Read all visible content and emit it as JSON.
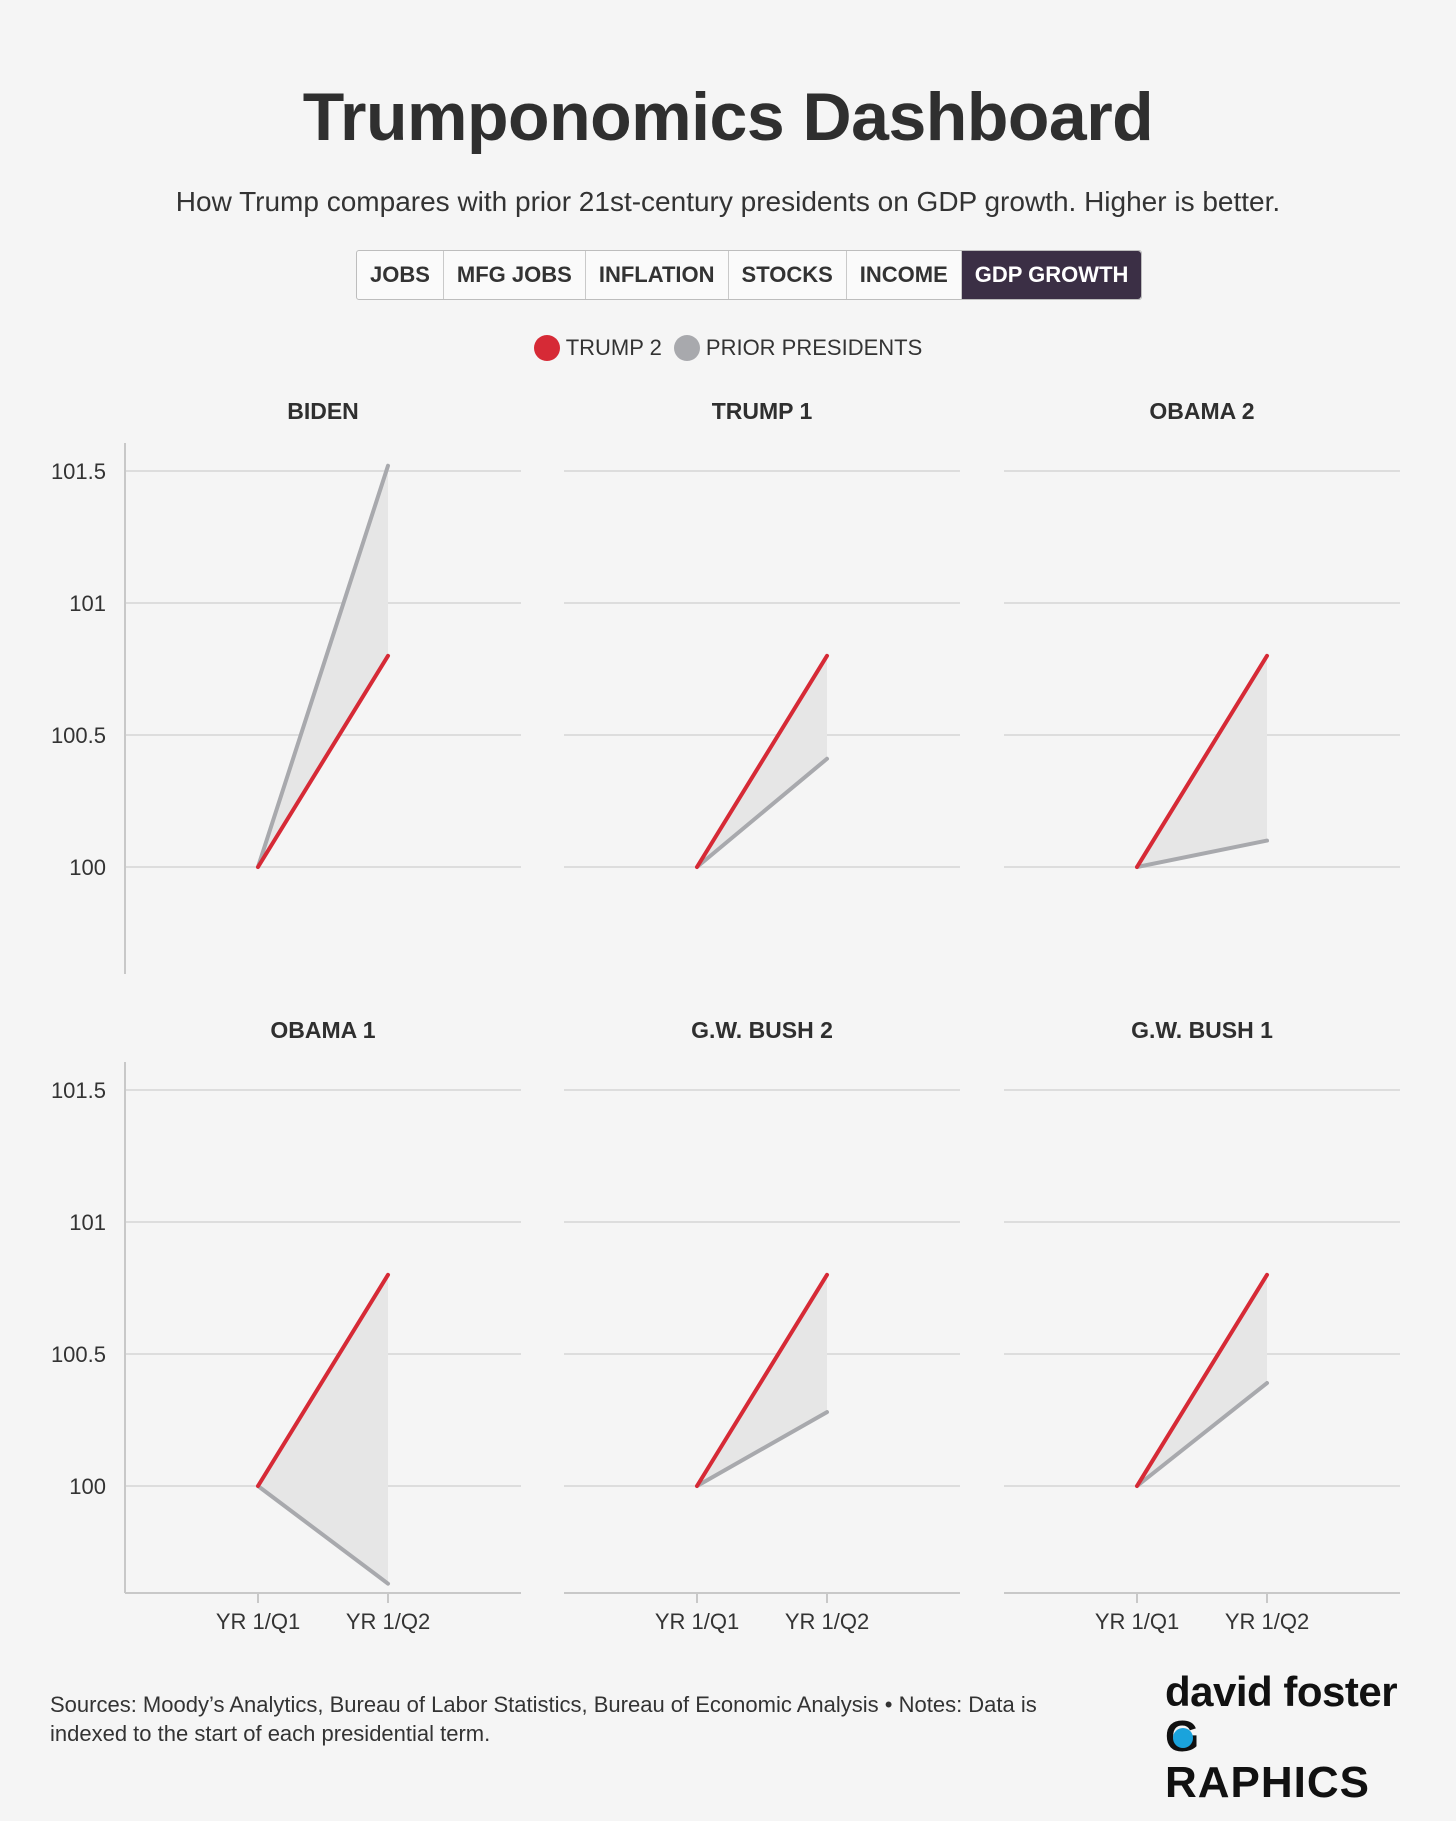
{
  "header": {
    "title": "Trumponomics Dashboard",
    "subtitle": "How Trump compares with prior 21st-century presidents on GDP growth. Higher is better."
  },
  "tabs": [
    {
      "label": "JOBS",
      "active": false
    },
    {
      "label": "MFG JOBS",
      "active": false
    },
    {
      "label": "INFLATION",
      "active": false
    },
    {
      "label": "STOCKS",
      "active": false
    },
    {
      "label": "INCOME",
      "active": false
    },
    {
      "label": "GDP GROWTH",
      "active": true
    }
  ],
  "legend": [
    {
      "label": "TRUMP 2",
      "color": "#d62a36"
    },
    {
      "label": "PRIOR PRESIDENTS",
      "color": "#a8a9ad"
    }
  ],
  "footer": {
    "sources": "Sources: Moody’s Analytics, Bureau of Labor Statistics, Bureau of Economic Analysis • Notes: Data is indexed to the start of each presidential term."
  },
  "logo": {
    "top": "david foster",
    "bottom_g": "G",
    "bottom_rest": "RAPHICS"
  },
  "chart_data": {
    "type": "line",
    "x": [
      "YR 1/Q1",
      "YR 1/Q2"
    ],
    "ylim": [
      99.6,
      101.6
    ],
    "yticks": [
      "101.5",
      "101",
      "100.5",
      "100"
    ],
    "trump2_series": {
      "name": "TRUMP 2",
      "values": [
        100,
        100.8
      ]
    },
    "panels": [
      {
        "title": "BIDEN",
        "values": [
          100,
          101.52
        ]
      },
      {
        "title": "TRUMP 1",
        "values": [
          100,
          100.41
        ]
      },
      {
        "title": "OBAMA 2",
        "values": [
          100,
          100.1
        ]
      },
      {
        "title": "OBAMA 1",
        "values": [
          100,
          99.63
        ]
      },
      {
        "title": "G.W. BUSH 2",
        "values": [
          100,
          100.28
        ]
      },
      {
        "title": "G.W. BUSH 1",
        "values": [
          100,
          100.39
        ]
      }
    ],
    "colors": {
      "trump2": "#d62a36",
      "prior": "#a8a9ad",
      "band": "#e6e6e6",
      "grid": "#dddddd",
      "axis": "#c8c8c8"
    }
  }
}
